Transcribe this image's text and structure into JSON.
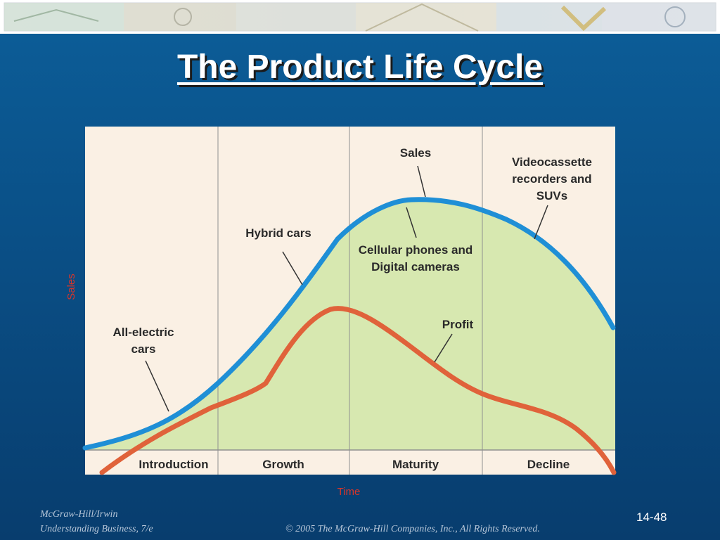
{
  "title": "The Product Life Cycle",
  "stages": [
    "Introduction",
    "Growth",
    "Maturity",
    "Decline"
  ],
  "y_axis_label": "Sales",
  "x_axis_label": "Time",
  "curves": {
    "sales": "Sales",
    "profit": "Profit"
  },
  "annotations": {
    "all_electric": [
      "All-electric",
      "cars"
    ],
    "hybrid": "Hybrid cars",
    "cellular": [
      "Cellular phones and",
      "Digital cameras"
    ],
    "videocassette": [
      "Videocassette",
      "recorders and",
      "SUVs"
    ]
  },
  "colors": {
    "sales_curve": "#1f8fd6",
    "profit_curve": "#e0623a",
    "fill": "#d7e8b0",
    "panel": "#faf0e4",
    "axis_label": "#d8352a"
  },
  "footer": {
    "publisher": "McGraw-Hill/Irwin",
    "book": "Understanding Business, 7/e",
    "copyright": "© 2005 The McGraw-Hill Companies, Inc., All Rights Reserved.",
    "slide_number": "14-48"
  }
}
